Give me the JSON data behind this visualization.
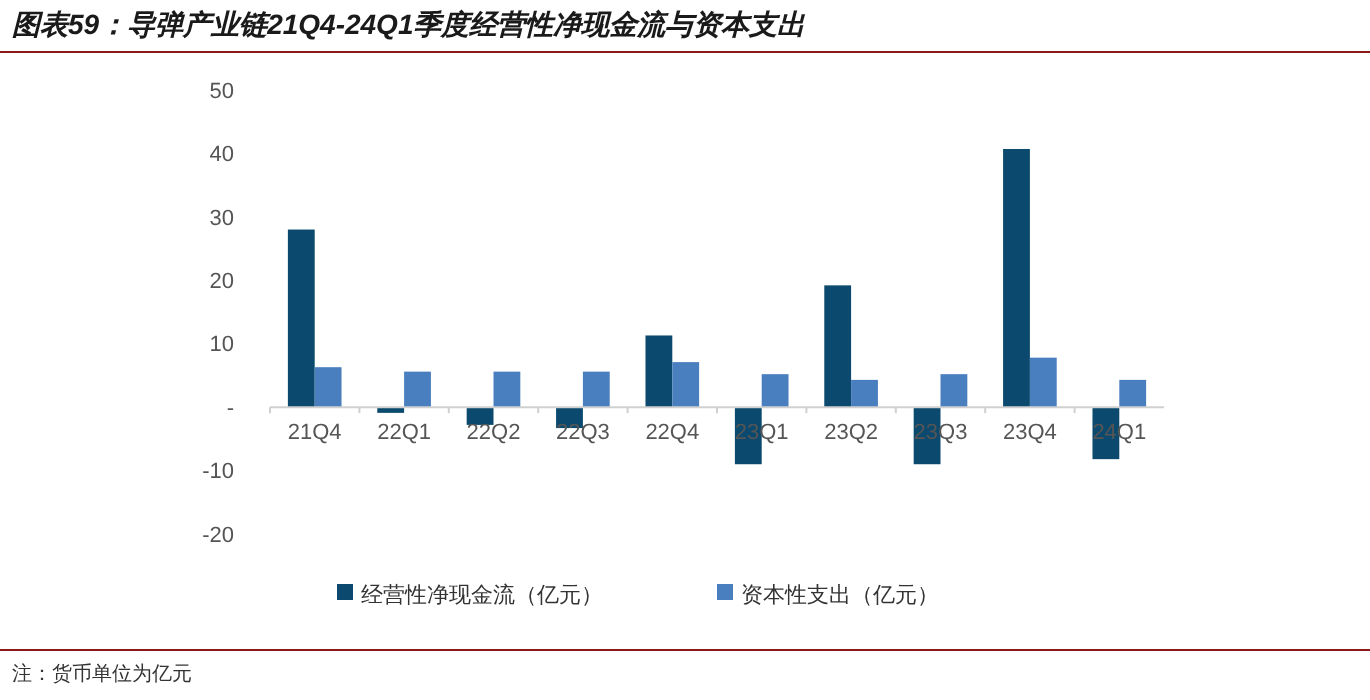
{
  "chart_data": {
    "type": "bar",
    "title": "图表59：导弹产业链21Q4-24Q1季度经营性净现金流与资本支出",
    "categories": [
      "21Q4",
      "22Q1",
      "22Q2",
      "22Q3",
      "22Q4",
      "23Q1",
      "23Q2",
      "23Q3",
      "23Q4",
      "24Q1"
    ],
    "series": [
      {
        "name": "经营性净现金流（亿元）",
        "color": "#0b4a6e",
        "values": [
          28.0,
          -0.9,
          -2.8,
          -3.3,
          11.3,
          -9.0,
          19.2,
          -9.0,
          40.7,
          -8.2
        ]
      },
      {
        "name": "资本性支出（亿元）",
        "color": "#4a7fbf",
        "values": [
          6.3,
          5.6,
          5.6,
          5.6,
          7.1,
          5.2,
          4.3,
          5.2,
          7.8,
          4.3
        ]
      }
    ],
    "ylim": [
      -20,
      50
    ],
    "yticks": [
      -20,
      -10,
      {
        "value": 0,
        "label": "-"
      },
      10,
      20,
      30,
      40,
      50
    ],
    "grid": false,
    "legend": "bottom",
    "annotations": [
      "注：货币单位为亿元"
    ]
  }
}
